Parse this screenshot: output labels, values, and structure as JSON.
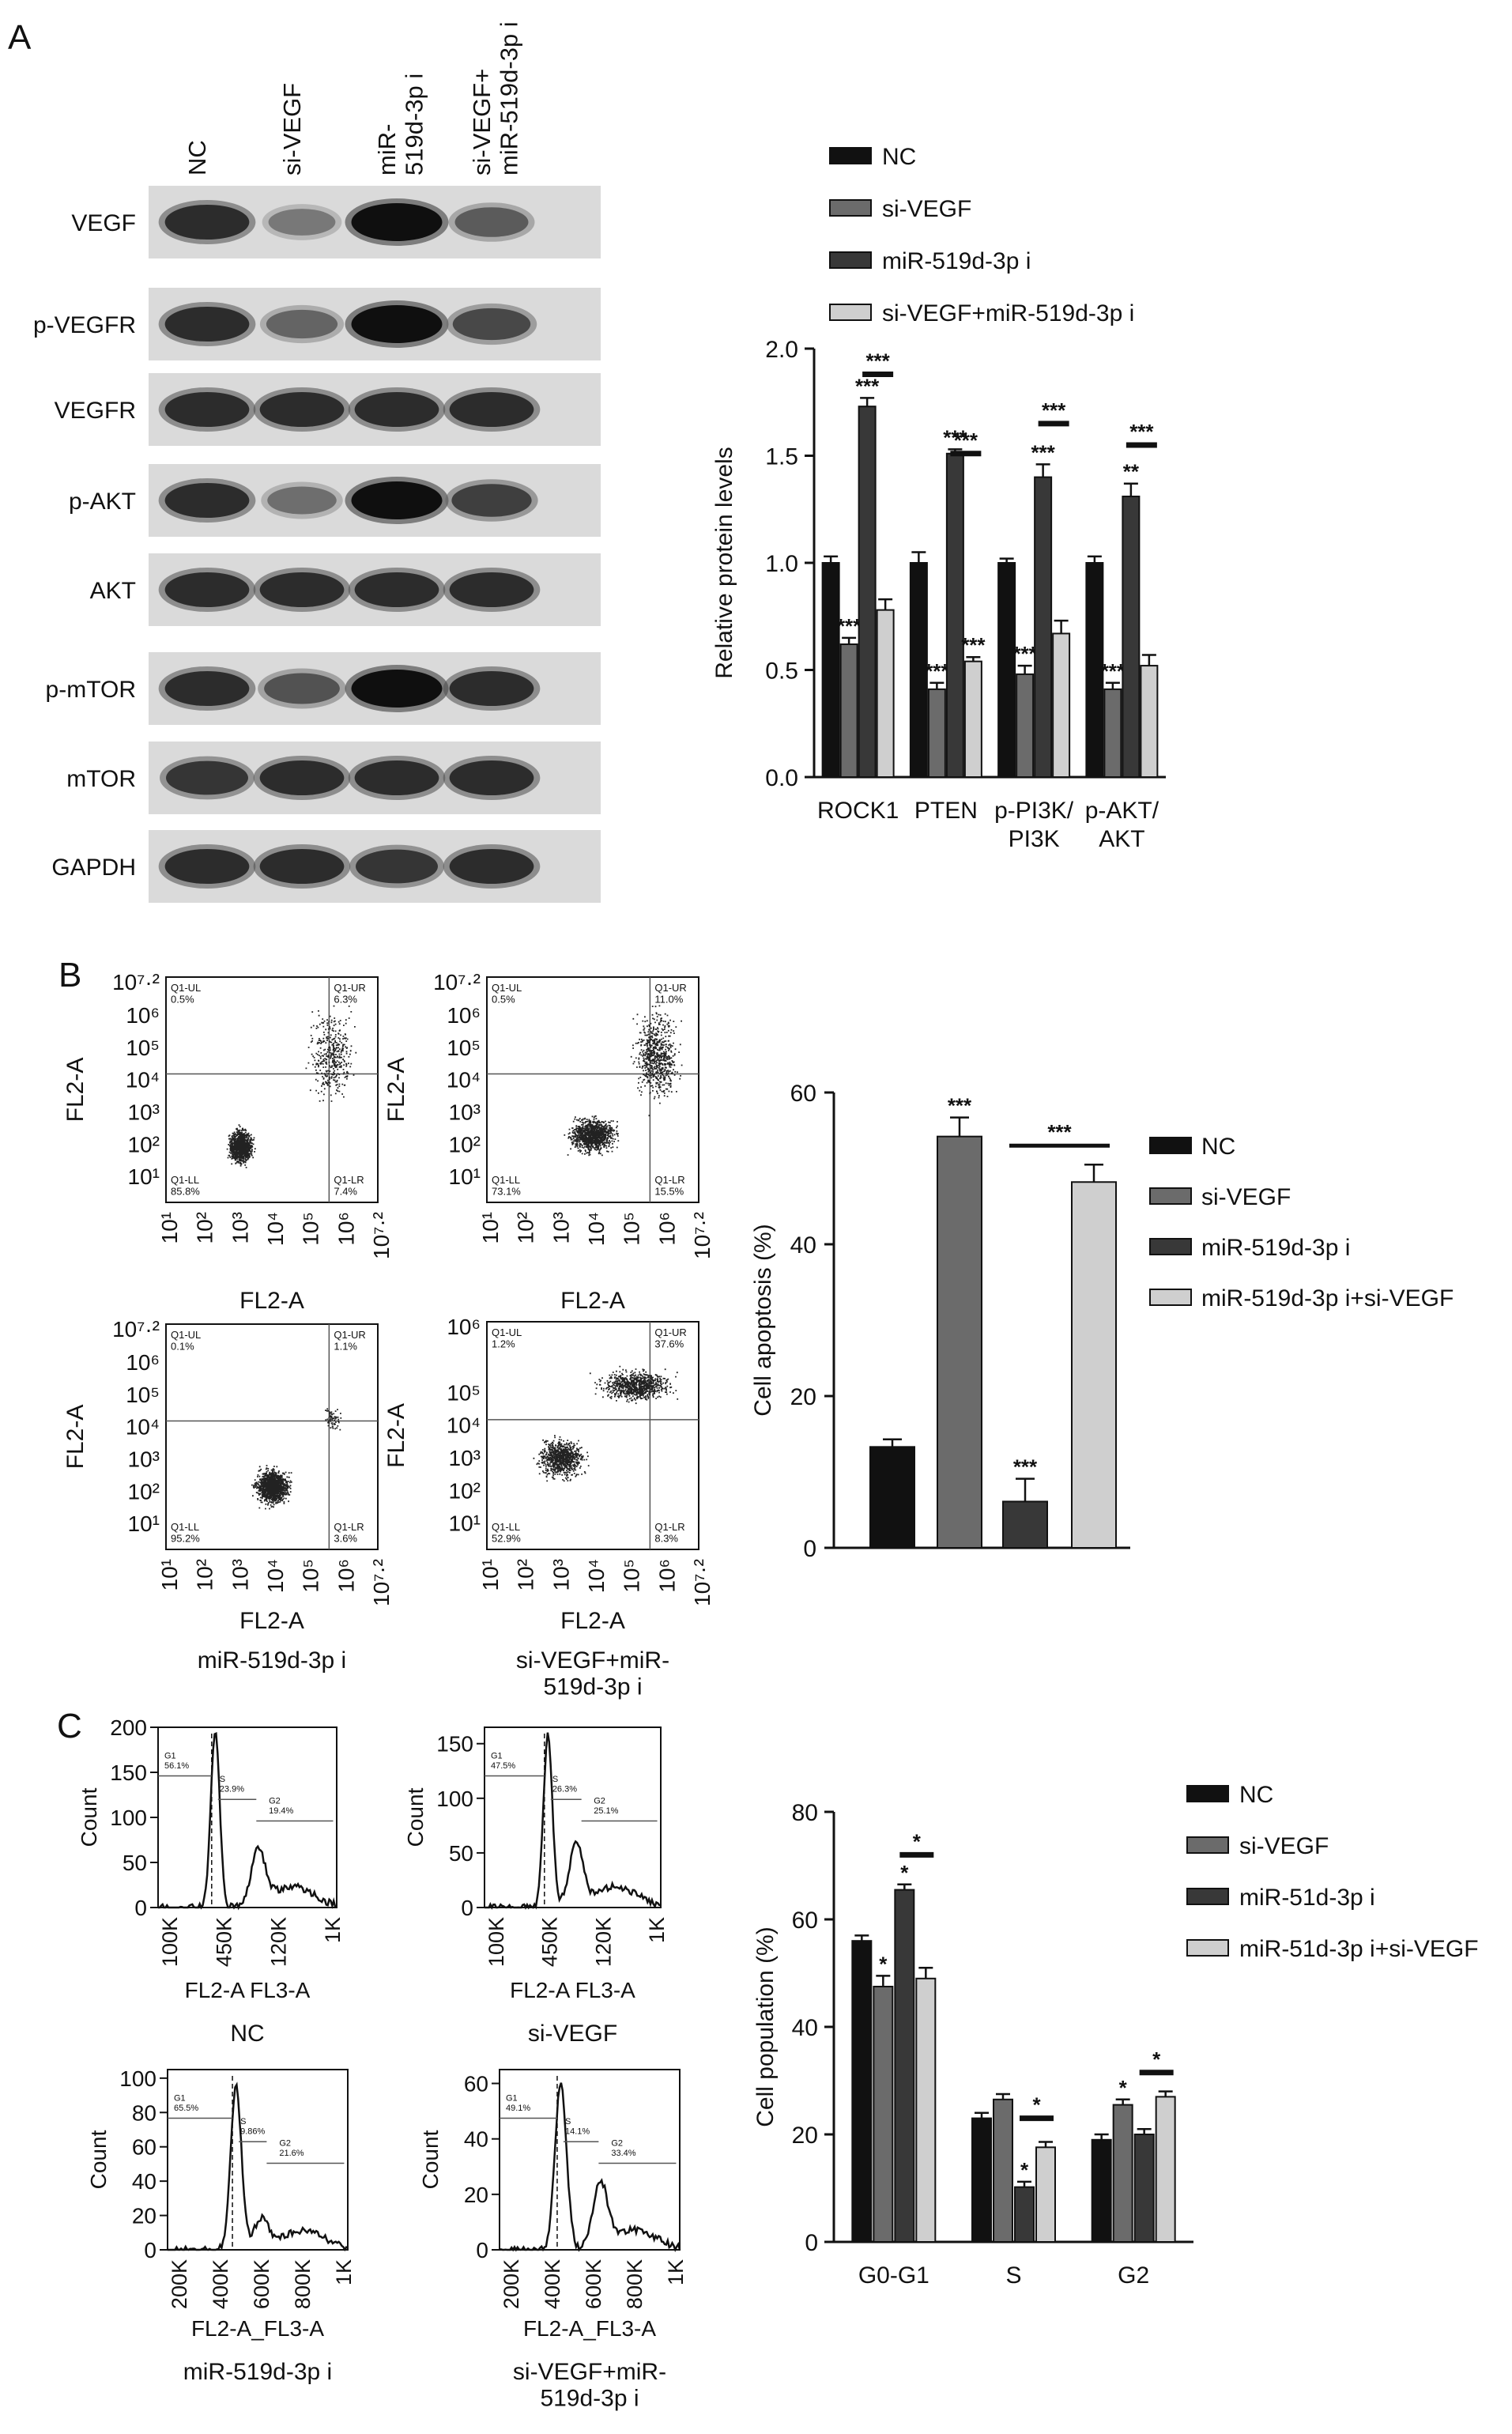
{
  "panel_labels": [
    "A",
    "B",
    "C"
  ],
  "panel_a": {
    "lanes": [
      "NC",
      "si-VEGF",
      "miR-\n519d-3p i",
      "si-VEGF+\nmiR-519d-3p i"
    ],
    "rows": [
      {
        "label": "VEGF",
        "intensity": [
          0.85,
          0.45,
          1.0,
          0.6
        ]
      },
      {
        "label": "p-VEGFR",
        "intensity": [
          0.85,
          0.55,
          1.0,
          0.7
        ]
      },
      {
        "label": "VEGFR",
        "intensity": [
          0.85,
          0.85,
          0.85,
          0.85
        ]
      },
      {
        "label": "p-AKT",
        "intensity": [
          0.85,
          0.5,
          1.0,
          0.75
        ]
      },
      {
        "label": "AKT",
        "intensity": [
          0.85,
          0.85,
          0.85,
          0.85
        ]
      },
      {
        "label": "p-mTOR",
        "intensity": [
          0.85,
          0.65,
          1.0,
          0.85
        ]
      },
      {
        "label": "mTOR",
        "intensity": [
          0.8,
          0.85,
          0.85,
          0.85
        ]
      },
      {
        "label": "GAPDH",
        "intensity": [
          0.85,
          0.85,
          0.8,
          0.85
        ]
      }
    ]
  },
  "panel_b": {
    "plots": [
      {
        "caption": "NC",
        "ytop": "10⁷·²",
        "q_ul": "Q1-UL\n0.5%",
        "q_ur": "Q1-UR\n6.3%",
        "q_ll": "Q1-LL\n85.8%",
        "q_lr": "Q1-LR\n7.4%"
      },
      {
        "caption": "si-VEGF",
        "ytop": "10⁷·²",
        "q_ul": "Q1-UL\n0.5%",
        "q_ur": "Q1-UR\n11.0%",
        "q_ll": "Q1-LL\n73.1%",
        "q_lr": "Q1-LR\n15.5%"
      },
      {
        "caption": "miR-519d-3p i",
        "ytop": "10⁷·²",
        "q_ul": "Q1-UL\n0.1%",
        "q_ur": "Q1-UR\n1.1%",
        "q_ll": "Q1-LL\n95.2%",
        "q_lr": "Q1-LR\n3.6%"
      },
      {
        "caption": "si-VEGF+miR-\n519d-3p i",
        "ytop": "10⁶",
        "q_ul": "Q1-UL\n1.2%",
        "q_ur": "Q1-UR\n37.6%",
        "q_ll": "Q1-LL\n52.9%",
        "q_lr": "Q1-LR\n8.3%"
      }
    ],
    "axis_label": "FL2-A",
    "x_ticks": [
      "10¹",
      "10²",
      "10³",
      "10⁴",
      "10⁵",
      "10⁶",
      "10⁷·²"
    ],
    "y_ticks": [
      "10¹",
      "10²",
      "10³",
      "10⁴",
      "10⁵",
      "10⁶"
    ]
  },
  "panel_c": {
    "plots": [
      {
        "caption": "NC",
        "xlabel": "FL2-A FL3-A",
        "x_ticks": [
          "100K",
          "450K",
          "120K",
          "1K"
        ],
        "y_ticks": [
          "0",
          "50",
          "100",
          "150",
          "200"
        ],
        "ymax": 200,
        "peak": 195,
        "g1": "G1\n56.1%",
        "s": "S\n23.9%",
        "g2": "G2\n19.4%"
      },
      {
        "caption": "si-VEGF",
        "xlabel": "FL2-A FL3-A",
        "x_ticks": [
          "100K",
          "450K",
          "120K",
          "1K"
        ],
        "y_ticks": [
          "0",
          "50",
          "100",
          "150"
        ],
        "ymax": 165,
        "peak": 160,
        "g1": "G1\n47.5%",
        "s": "S\n26.3%",
        "g2": "G2\n25.1%"
      },
      {
        "caption": "miR-519d-3p i",
        "xlabel": "FL2-A_FL3-A",
        "x_ticks": [
          "200K",
          "400K",
          "600K",
          "800K",
          "1K"
        ],
        "y_ticks": [
          "0",
          "20",
          "40",
          "60",
          "80",
          "100"
        ],
        "ymax": 105,
        "peak": 95,
        "g1": "G1\n65.5%",
        "s": "S\n9.86%",
        "g2": "G2\n21.6%"
      },
      {
        "caption": "si-VEGF+miR-\n519d-3p i",
        "xlabel": "FL2-A_FL3-A",
        "x_ticks": [
          "200K",
          "400K",
          "600K",
          "800K",
          "1K"
        ],
        "y_ticks": [
          "0",
          "20",
          "40",
          "60"
        ],
        "ymax": 65,
        "peak": 60,
        "g1": "G1\n49.1%",
        "s": "S\n14.1%",
        "g2": "G2\n33.4%"
      }
    ],
    "ylabel": "Count"
  },
  "chart_data": [
    {
      "type": "bar",
      "ylabel": "Relative protein levels",
      "categories": [
        "ROCK1",
        "PTEN",
        "p-PI3K/\nPI3K",
        "p-AKT/\nAKT"
      ],
      "y_ticks": [
        "0.0",
        "0.5",
        "1.0",
        "1.5",
        "2.0"
      ],
      "ylim": [
        0,
        2.0
      ],
      "series": [
        {
          "name": "NC",
          "values": [
            1.0,
            1.0,
            1.0,
            1.0
          ],
          "errors": [
            0.03,
            0.05,
            0.02,
            0.03
          ],
          "stars": [
            "",
            "",
            "",
            ""
          ]
        },
        {
          "name": "si-VEGF",
          "values": [
            0.62,
            0.41,
            0.48,
            0.41
          ],
          "errors": [
            0.03,
            0.03,
            0.04,
            0.03
          ],
          "stars": [
            "***",
            "***",
            "***",
            "***"
          ]
        },
        {
          "name": "miR-519d-3p i",
          "values": [
            1.73,
            1.51,
            1.4,
            1.31
          ],
          "errors": [
            0.04,
            0.02,
            0.06,
            0.06
          ],
          "stars": [
            "***",
            "***",
            "***",
            "**"
          ]
        },
        {
          "name": "si-VEGF+miR-519d-3p i",
          "values": [
            0.78,
            0.54,
            0.67,
            0.52
          ],
          "errors": [
            0.05,
            0.02,
            0.06,
            0.05
          ],
          "stars": [
            "",
            "***",
            "",
            ""
          ]
        }
      ],
      "brackets": [
        {
          "category": 0,
          "from": 2,
          "to": 3,
          "y": 1.88,
          "label": "***"
        },
        {
          "category": 1,
          "from": 2,
          "to": 3,
          "y": 1.51,
          "label": "***"
        },
        {
          "category": 2,
          "from": 2,
          "to": 3,
          "y": 1.65,
          "label": "***"
        },
        {
          "category": 3,
          "from": 2,
          "to": 3,
          "y": 1.55,
          "label": "***"
        }
      ],
      "legend": "top-right"
    },
    {
      "type": "bar",
      "ylabel": "Cell apoptosis (%)",
      "categories": [
        "NC",
        "si-VEGF",
        "miR-519d-3p i",
        "miR-519d-3p i+si-VEGF"
      ],
      "y_ticks": [
        "0",
        "20",
        "40",
        "60"
      ],
      "ylim": [
        0,
        60
      ],
      "values": [
        13.3,
        54.2,
        6.1,
        48.2
      ],
      "errors": [
        1.0,
        2.5,
        3.0,
        2.3
      ],
      "stars": [
        "",
        "***",
        "***",
        ""
      ],
      "brackets": [
        {
          "from": 2,
          "to": 3,
          "y": 53,
          "label": "***"
        }
      ],
      "series_names": [
        "NC",
        "si-VEGF",
        "miR-519d-3p i",
        "miR-519d-3p i+si-VEGF"
      ],
      "legend": "right"
    },
    {
      "type": "bar",
      "ylabel": "Cell population (%)",
      "categories": [
        "G0-G1",
        "S",
        "G2"
      ],
      "y_ticks": [
        "0",
        "20",
        "40",
        "60",
        "80"
      ],
      "ylim": [
        0,
        80
      ],
      "series": [
        {
          "name": "NC",
          "values": [
            56.0,
            23.0,
            19.0
          ],
          "errors": [
            1.0,
            1.0,
            1.0
          ],
          "stars": [
            "",
            "",
            ""
          ]
        },
        {
          "name": "si-VEGF",
          "values": [
            47.5,
            26.5,
            25.5
          ],
          "errors": [
            2.0,
            1.0,
            1.0
          ],
          "stars": [
            "*",
            "",
            "*"
          ]
        },
        {
          "name": "miR-51d-3p i",
          "values": [
            65.5,
            10.2,
            20.0
          ],
          "errors": [
            1.0,
            1.0,
            1.0
          ],
          "stars": [
            "*",
            "*",
            ""
          ]
        },
        {
          "name": "miR-51d-3p i+si-VEGF",
          "values": [
            49.0,
            17.6,
            27.0
          ],
          "errors": [
            2.0,
            1.0,
            1.0
          ],
          "stars": [
            "",
            "",
            ""
          ]
        }
      ],
      "brackets": [
        {
          "category": 0,
          "from": 2,
          "to": 3,
          "y": 72,
          "label": "*"
        },
        {
          "category": 1,
          "from": 2,
          "to": 3,
          "y": 23,
          "label": "*"
        },
        {
          "category": 2,
          "from": 2,
          "to": 3,
          "y": 31.5,
          "label": "*"
        }
      ],
      "legend": "top-right"
    }
  ]
}
